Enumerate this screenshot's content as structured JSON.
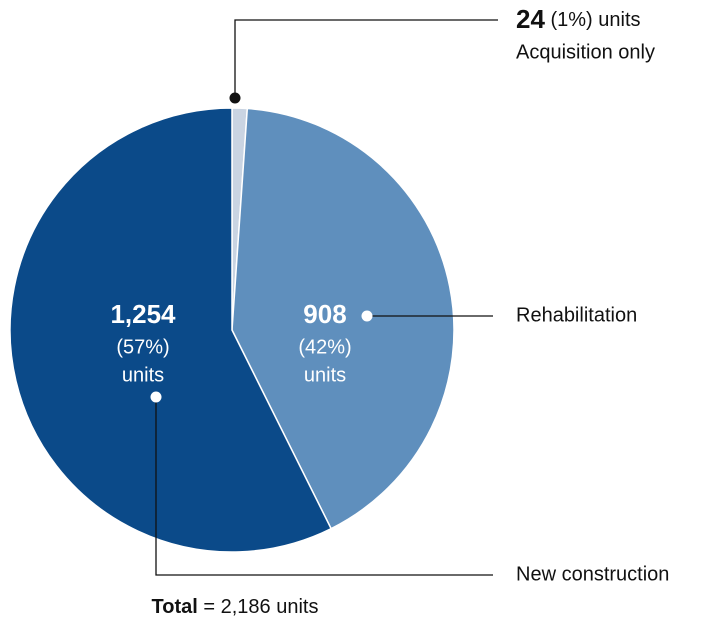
{
  "chart_data": {
    "type": "pie",
    "categories": [
      "Acquisition only",
      "Rehabilitation",
      "New construction"
    ],
    "values": [
      24,
      908,
      1254
    ],
    "value_labels": [
      "24",
      "908",
      "1,254"
    ],
    "percent_labels": [
      "(1%)",
      "(42%)",
      "(57%)"
    ],
    "unit_label": "units",
    "colors": [
      "#c9d4e2",
      "#5f8fbd",
      "#0b4a89"
    ],
    "total_label": "Total",
    "total_text": "= 2,186 units"
  }
}
